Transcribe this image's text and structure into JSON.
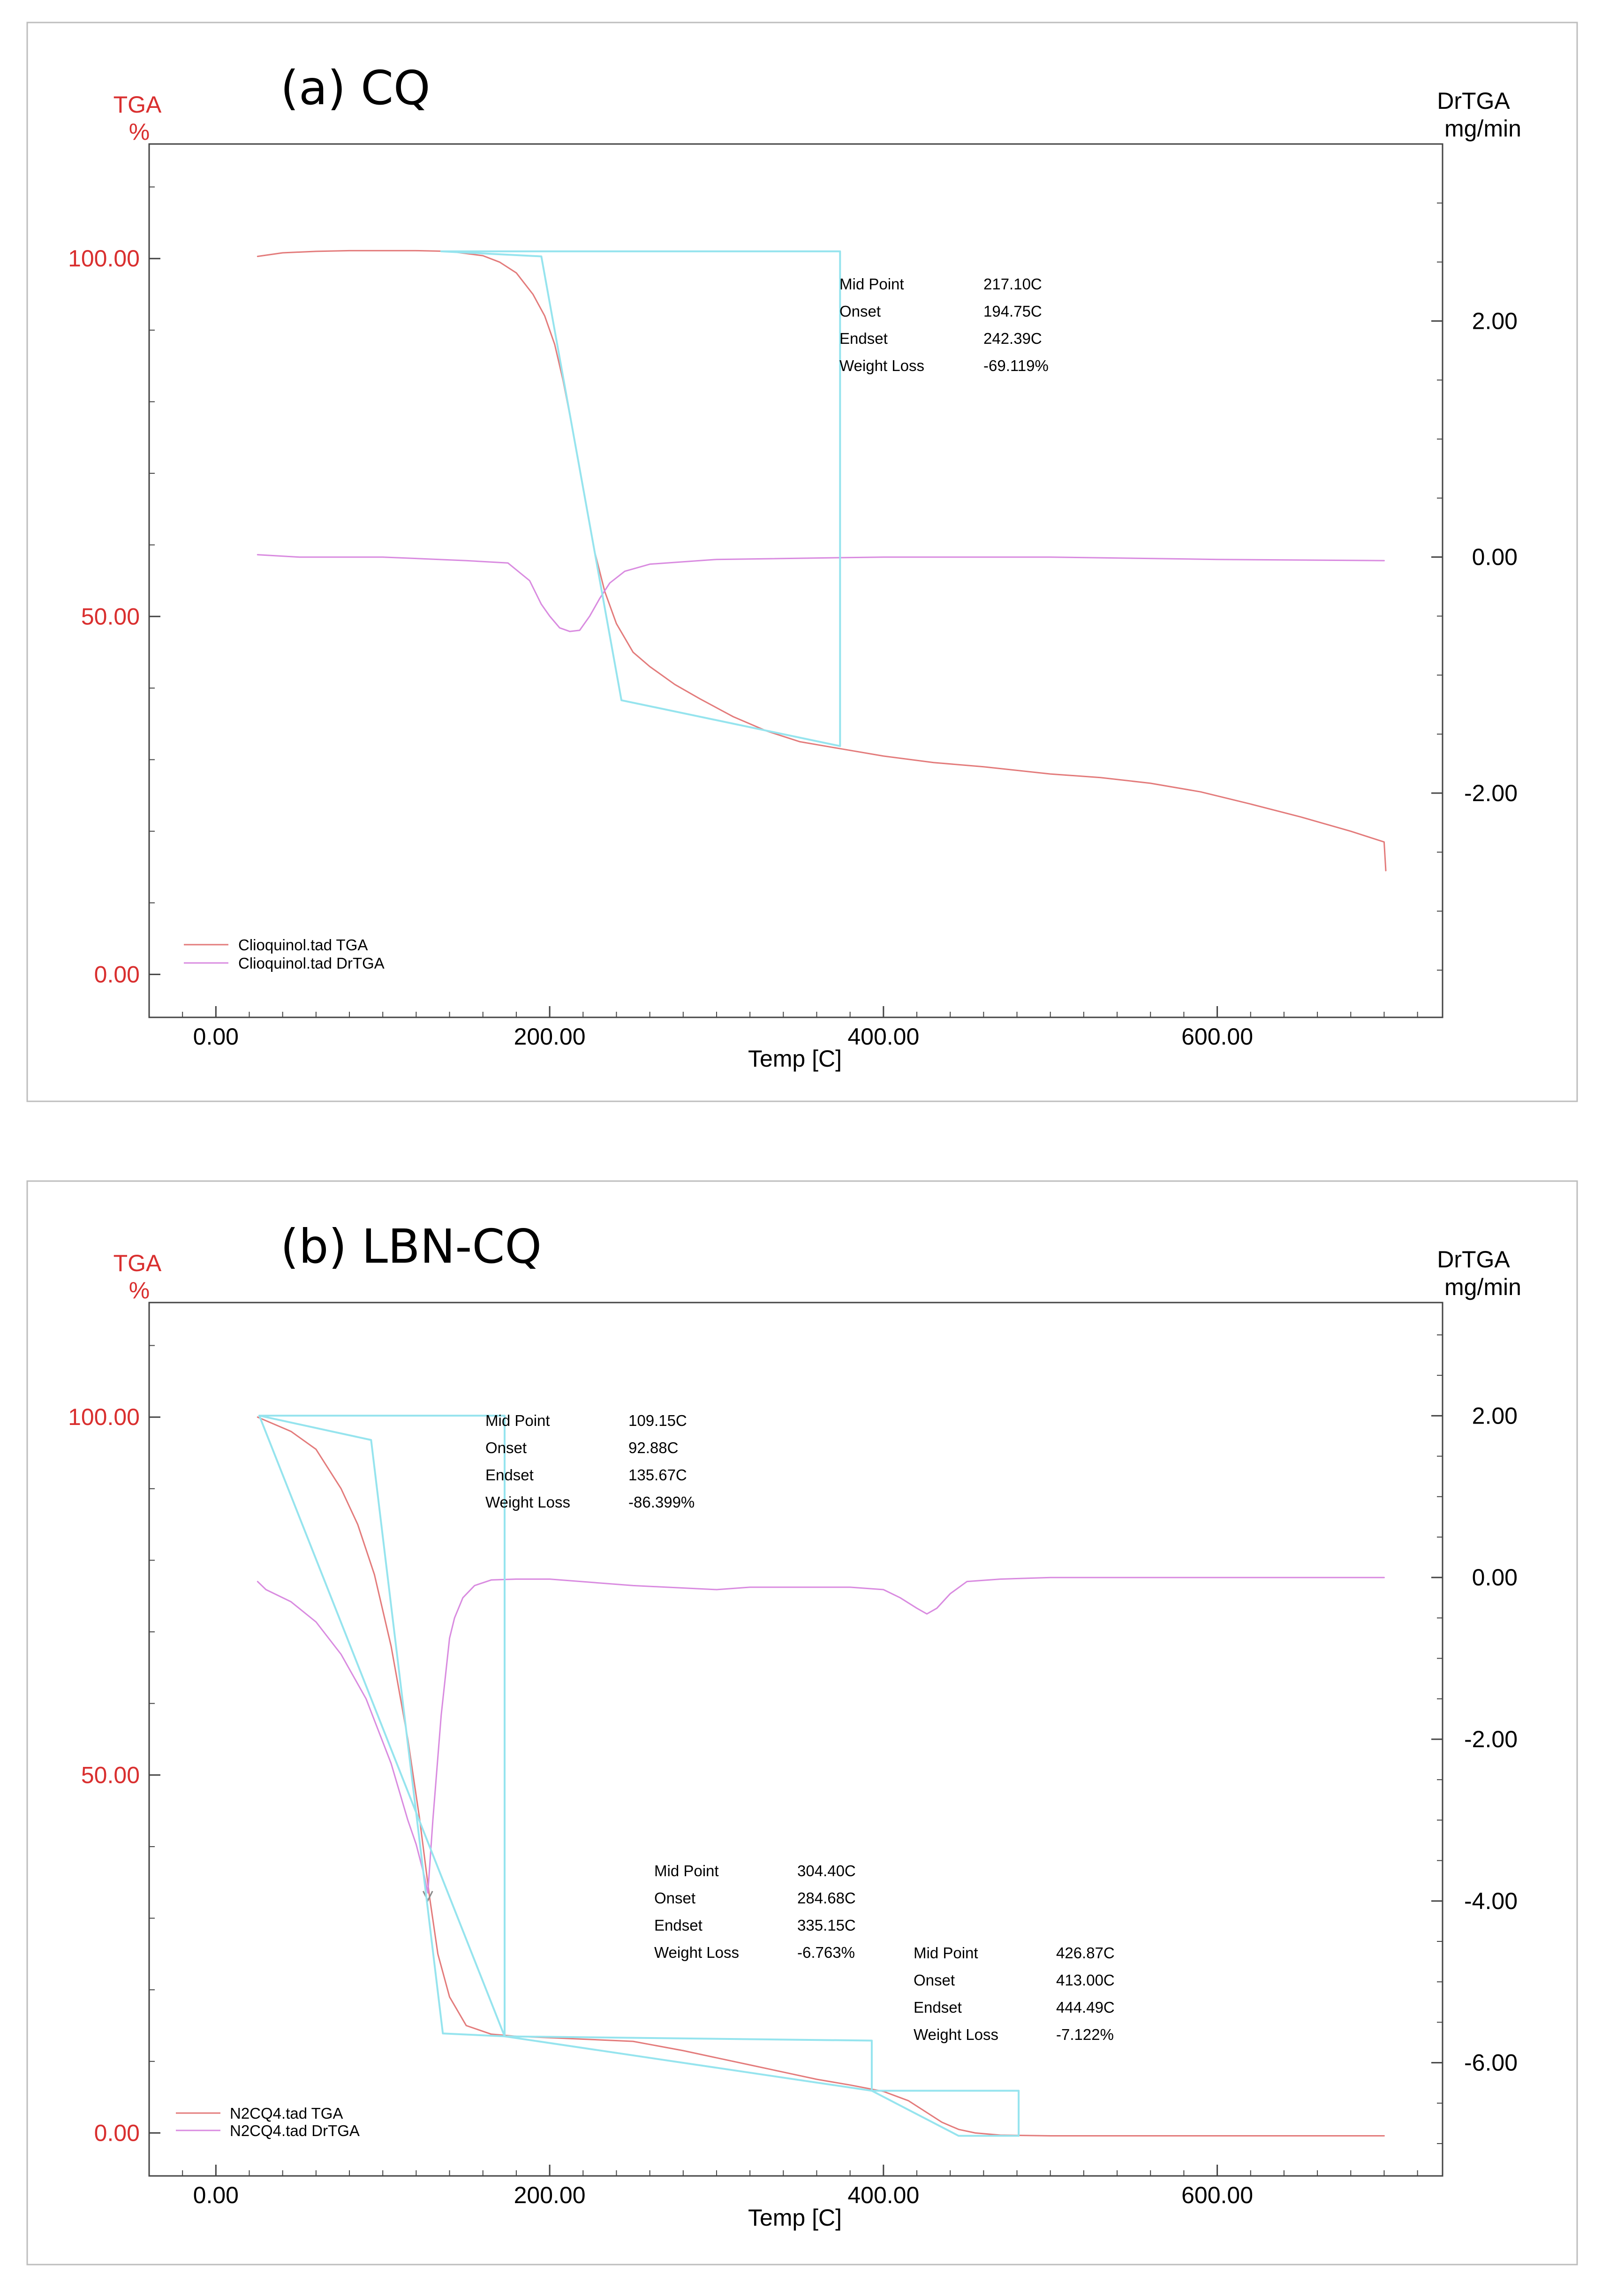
{
  "chart_data": [
    {
      "type": "line",
      "title": "(a) CQ",
      "xlabel": "Temp  [C]",
      "ylabel_left": [
        "TGA",
        "%"
      ],
      "ylabel_right": [
        "DrTGA",
        "mg/min"
      ],
      "xlim": [
        -40,
        735
      ],
      "ylim_left": [
        -6,
        116
      ],
      "ylim_right": [
        -3.9,
        3.5
      ],
      "x_ticks": [
        0,
        200,
        400,
        600
      ],
      "x_tick_labels": [
        "0.00",
        "200.00",
        "400.00",
        "600.00"
      ],
      "left_ticks": [
        0,
        50,
        100
      ],
      "left_tick_labels": [
        "0.00",
        "50.00",
        "100.00"
      ],
      "right_ticks": [
        2,
        0,
        -2
      ],
      "right_tick_labels": [
        "2.00",
        "0.00",
        "-2.00"
      ],
      "colors": {
        "tga": "#e37b7b",
        "drtga": "#d98be0",
        "analysis": "#96e4ee",
        "axis_label": "#d92f2f"
      },
      "series": [
        {
          "name": "Clioquinol.tad  TGA",
          "axis": "left",
          "x": [
            25,
            40,
            60,
            80,
            100,
            120,
            140,
            160,
            170,
            180,
            190,
            197,
            203,
            208,
            213,
            217,
            222,
            227,
            233,
            240,
            250,
            260,
            275,
            290,
            310,
            330,
            350,
            375,
            400,
            430,
            460,
            500,
            530,
            560,
            590,
            620,
            650,
            680,
            700,
            701
          ],
          "y": [
            100.3,
            100.8,
            101.0,
            101.1,
            101.1,
            101.1,
            101.0,
            100.4,
            99.5,
            98.0,
            95.0,
            92.0,
            88.0,
            83.0,
            77.0,
            72.0,
            65.5,
            59.0,
            53.5,
            49.0,
            45.0,
            43.0,
            40.5,
            38.5,
            36.0,
            34.0,
            32.5,
            31.5,
            30.5,
            29.6,
            29.0,
            28.0,
            27.5,
            26.7,
            25.5,
            23.8,
            22.0,
            20.0,
            18.5,
            14.5
          ]
        },
        {
          "name": "Clioquinol.tad  DrTGA",
          "axis": "right",
          "x": [
            25,
            50,
            100,
            150,
            175,
            188,
            195,
            200,
            206,
            212,
            218,
            224,
            230,
            236,
            245,
            260,
            300,
            400,
            500,
            600,
            700
          ],
          "y": [
            0.02,
            0.0,
            0.0,
            -0.03,
            -0.05,
            -0.2,
            -0.4,
            -0.5,
            -0.6,
            -0.63,
            -0.62,
            -0.5,
            -0.35,
            -0.22,
            -0.12,
            -0.06,
            -0.02,
            0.0,
            0.0,
            -0.02,
            -0.03
          ]
        },
        {
          "name": "analysis",
          "axis": "left",
          "x": [
            135,
            195,
            243,
            374,
            374,
            135
          ],
          "y": [
            101.0,
            100.3,
            38.3,
            31.9,
            101.0,
            101.0
          ]
        }
      ],
      "annotations": [
        {
          "labels": [
            "Mid Point",
            "Onset",
            "Endset",
            "Weight Loss"
          ],
          "values": [
            "217.10C",
            "194.75C",
            "242.39C",
            "-69.119%"
          ]
        }
      ],
      "legend": {
        "placement": "bottom-left",
        "entries": [
          "Clioquinol.tad  TGA",
          "Clioquinol.tad  DrTGA"
        ]
      }
    },
    {
      "type": "line",
      "title": "(b) LBN-CQ",
      "xlabel": "Temp  [C]",
      "ylabel_left": [
        "TGA",
        "%"
      ],
      "ylabel_right": [
        "DrTGA",
        "mg/min"
      ],
      "xlim": [
        -40,
        735
      ],
      "ylim_left": [
        -6,
        116
      ],
      "ylim_right": [
        -7.4,
        3.4
      ],
      "x_ticks": [
        0,
        200,
        400,
        600
      ],
      "x_tick_labels": [
        "0.00",
        "200.00",
        "400.00",
        "600.00"
      ],
      "left_ticks": [
        0,
        50,
        100
      ],
      "left_tick_labels": [
        "0.00",
        "50.00",
        "100.00"
      ],
      "right_ticks": [
        2,
        0,
        -2,
        -4,
        -6
      ],
      "right_tick_labels": [
        "2.00",
        "0.00",
        "-2.00",
        "-4.00",
        "-6.00"
      ],
      "colors": {
        "tga": "#e37b7b",
        "drtga": "#d98be0",
        "analysis": "#96e4ee",
        "axis_label": "#d92f2f"
      },
      "series": [
        {
          "name": "N2CQ4.tad  TGA",
          "axis": "left",
          "x": [
            25,
            45,
            60,
            75,
            85,
            95,
            105,
            115,
            122,
            128,
            133,
            140,
            150,
            165,
            180,
            200,
            250,
            280,
            300,
            320,
            340,
            360,
            380,
            400,
            415,
            425,
            435,
            445,
            455,
            470,
            500,
            600,
            700
          ],
          "y": [
            100.0,
            98.0,
            95.5,
            90.0,
            85.0,
            78.0,
            68.0,
            55.0,
            44.0,
            33.0,
            25.0,
            19.0,
            15.0,
            13.8,
            13.5,
            13.3,
            12.8,
            11.5,
            10.5,
            9.5,
            8.5,
            7.5,
            6.7,
            5.8,
            4.5,
            3.0,
            1.5,
            0.5,
            0.0,
            -0.3,
            -0.4,
            -0.4,
            -0.4
          ],
          "markers": [
            [
              127,
              33
            ]
          ]
        },
        {
          "name": "N2CQ4.tad  DrTGA",
          "axis": "right",
          "x": [
            25,
            30,
            45,
            60,
            75,
            90,
            105,
            115,
            120,
            125,
            127,
            130,
            135,
            140,
            143,
            148,
            155,
            165,
            180,
            200,
            250,
            300,
            320,
            340,
            380,
            400,
            410,
            420,
            426,
            432,
            440,
            450,
            470,
            500,
            600,
            700
          ],
          "y": [
            -0.05,
            -0.15,
            -0.3,
            -0.55,
            -0.95,
            -1.5,
            -2.3,
            -3.0,
            -3.3,
            -3.7,
            -3.9,
            -3.0,
            -1.7,
            -0.75,
            -0.5,
            -0.25,
            -0.1,
            -0.03,
            -0.02,
            -0.02,
            -0.1,
            -0.15,
            -0.12,
            -0.12,
            -0.12,
            -0.15,
            -0.25,
            -0.38,
            -0.45,
            -0.38,
            -0.2,
            -0.05,
            -0.02,
            0.0,
            0.0,
            0.0
          ]
        },
        {
          "name": "analysis",
          "axis": "left",
          "x": [
            26,
            93,
            136,
            173,
            173,
            26,
            26,
            173,
            393,
            393,
            173
          ],
          "y": [
            100.2,
            96.8,
            13.9,
            13.5,
            100.2,
            100.2,
            100.2,
            13.5,
            12.9,
            5.9,
            13.5
          ]
        },
        {
          "name": "analysis",
          "axis": "left",
          "x": [
            393,
            481,
            481,
            445,
            393
          ],
          "y": [
            5.9,
            5.9,
            -0.4,
            -0.4,
            5.9
          ]
        }
      ],
      "annotations": [
        {
          "labels": [
            "Mid Point",
            "Onset",
            "Endset",
            "Weight Loss"
          ],
          "values": [
            "109.15C",
            "92.88C",
            "135.67C",
            "-86.399%"
          ]
        },
        {
          "labels": [
            "Mid Point",
            "Onset",
            "Endset",
            "Weight Loss"
          ],
          "values": [
            "304.40C",
            "284.68C",
            "335.15C",
            "-6.763%"
          ]
        },
        {
          "labels": [
            "Mid Point",
            "Onset",
            "Endset",
            "Weight Loss"
          ],
          "values": [
            "426.87C",
            "413.00C",
            "444.49C",
            "-7.122%"
          ]
        }
      ],
      "legend": {
        "placement": "bottom-left",
        "entries": [
          "N2CQ4.tad  TGA",
          "N2CQ4.tad  DrTGA"
        ]
      }
    }
  ]
}
